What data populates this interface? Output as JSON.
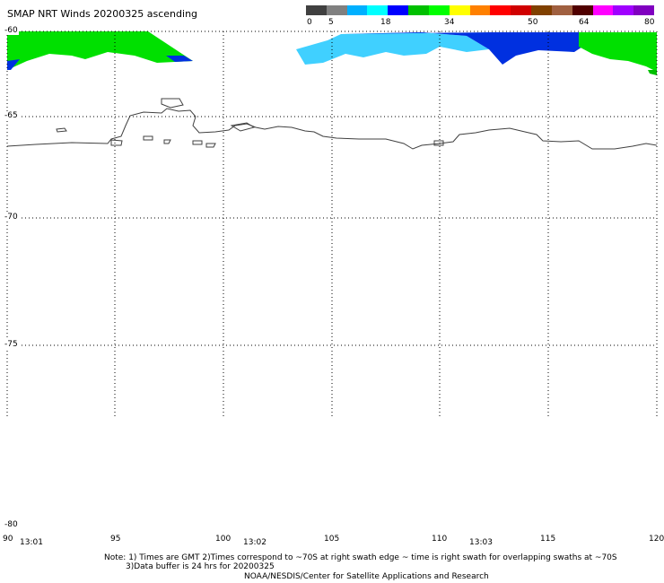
{
  "title": "SMAP NRT Winds 20200325 ascending",
  "colorbar": {
    "tick_labels": [
      "0",
      "5",
      "18",
      "34",
      "50",
      "64",
      "80"
    ],
    "colors": [
      "#404040",
      "#808080",
      "#00b0ff",
      "#00ffff",
      "#0000ff",
      "#00c000",
      "#00ff00",
      "#ffff00",
      "#ff8000",
      "#ff0000",
      "#d00000",
      "#804000",
      "#a06040",
      "#500000",
      "#ff00ff",
      "#a000ff",
      "#8000c0"
    ]
  },
  "latitude_labels": [
    "-60",
    "-65",
    "-70",
    "-75",
    "-80"
  ],
  "longitude_labels": [
    "90",
    "95",
    "100",
    "105",
    "110",
    "115",
    "120"
  ],
  "time_labels": [
    "13:01",
    "13:02",
    "13:03"
  ],
  "notes": {
    "line1": "Note: 1) Times are GMT 2)Times correspond to ~70S at right swath edge ~ time is right swath for overlapping swaths at ~70S",
    "line2": "3)Data buffer is 24 hrs for 20200325",
    "line3": "NOAA/NESDIS/Center for Satellite Applications and Research"
  },
  "colors": {
    "wind_green": "#00e000",
    "wind_cyan": "#40d0ff",
    "wind_blue": "#0030e0",
    "coastline": "#404040",
    "grid": "#000000"
  }
}
